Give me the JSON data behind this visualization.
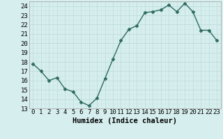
{
  "x": [
    0,
    1,
    2,
    3,
    4,
    5,
    6,
    7,
    8,
    9,
    10,
    11,
    12,
    13,
    14,
    15,
    16,
    17,
    18,
    19,
    20,
    21,
    22,
    23
  ],
  "y": [
    17.8,
    17.0,
    16.0,
    16.3,
    15.1,
    14.8,
    13.7,
    13.3,
    14.1,
    16.2,
    18.3,
    20.3,
    21.5,
    21.9,
    23.3,
    23.4,
    23.6,
    24.1,
    23.4,
    24.3,
    23.4,
    21.4,
    21.4,
    20.3
  ],
  "line_color": "#2e6b5e",
  "marker": "D",
  "marker_size": 2.5,
  "bg_color": "#d6eeee",
  "grid_major_color": "#c0dcdc",
  "grid_minor_color": "#c8e4e4",
  "xlabel": "Humidex (Indice chaleur)",
  "ylim": [
    13,
    24.5
  ],
  "xlim": [
    -0.5,
    23.5
  ],
  "yticks": [
    13,
    14,
    15,
    16,
    17,
    18,
    19,
    20,
    21,
    22,
    23,
    24
  ],
  "xticks": [
    0,
    1,
    2,
    3,
    4,
    5,
    6,
    7,
    8,
    9,
    10,
    11,
    12,
    13,
    14,
    15,
    16,
    17,
    18,
    19,
    20,
    21,
    22,
    23
  ],
  "xlabel_fontsize": 7.5,
  "tick_fontsize": 6.5,
  "line_width": 1.0
}
